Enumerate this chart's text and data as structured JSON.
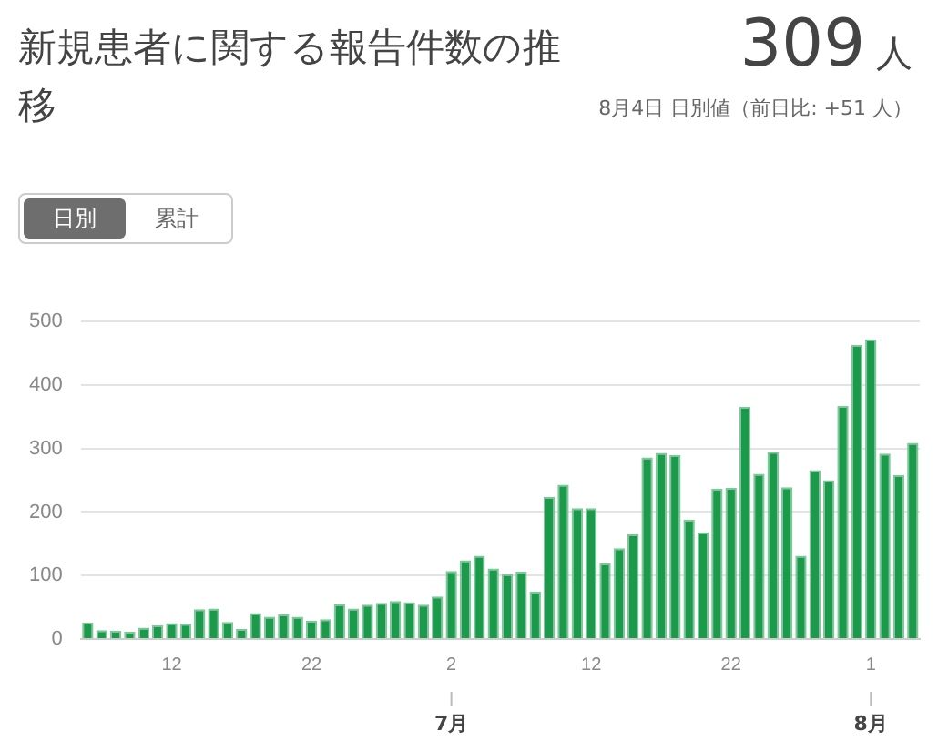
{
  "chart_data": {
    "type": "bar",
    "title": "新規患者に関する報告件数の推移",
    "annotations": [
      "309 人",
      "8月4日 日別値（前日比: +51 人）",
      "日別",
      "累計",
      {
        "text": "7月",
        "x": "2"
      },
      {
        "text": "8月",
        "x": "1"
      }
    ],
    "categories": [
      null,
      null,
      null,
      null,
      null,
      null,
      "12",
      null,
      null,
      null,
      null,
      null,
      null,
      null,
      null,
      null,
      "22",
      null,
      null,
      null,
      null,
      null,
      null,
      null,
      null,
      null,
      "2",
      null,
      null,
      null,
      null,
      null,
      null,
      null,
      null,
      null,
      "12",
      null,
      null,
      null,
      null,
      null,
      null,
      null,
      null,
      null,
      "22",
      null,
      null,
      null,
      null,
      null,
      null,
      null,
      null,
      null,
      "1",
      null,
      null,
      null
    ],
    "values": [
      26,
      14,
      13,
      12,
      18,
      22,
      25,
      24,
      47,
      48,
      27,
      16,
      41,
      35,
      39,
      35,
      29,
      31,
      55,
      48,
      54,
      57,
      60,
      58,
      54,
      67,
      107,
      124,
      131,
      111,
      102,
      106,
      75,
      224,
      243,
      206,
      206,
      119,
      143,
      165,
      286,
      293,
      290,
      188,
      168,
      237,
      238,
      366,
      260,
      295,
      239,
      131,
      266,
      250,
      367,
      463,
      472,
      292,
      258,
      309
    ],
    "color": "#1b9a4b",
    "ylim": [
      0,
      500
    ],
    "yticks": [
      0,
      100,
      200,
      300,
      400,
      500
    ],
    "grid": "y",
    "legend": false
  }
}
